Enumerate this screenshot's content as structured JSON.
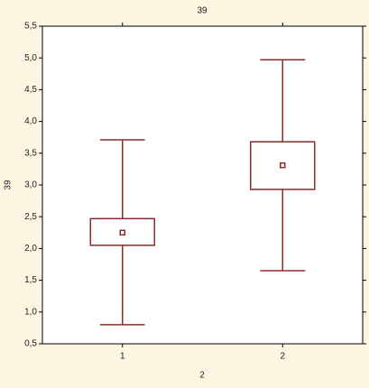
{
  "chart_data": {
    "type": "box",
    "title": "39",
    "x_label": "2",
    "y_label": "39",
    "categories": [
      "1",
      "2"
    ],
    "boxes": [
      {
        "whisker_low": 0.8,
        "q1": 2.05,
        "mean": 2.25,
        "q3": 2.47,
        "whisker_high": 3.71
      },
      {
        "whisker_low": 1.65,
        "q1": 2.93,
        "mean": 3.31,
        "q3": 3.68,
        "whisker_high": 4.97
      }
    ],
    "color": "#8c2b2b",
    "ylim": [
      0.5,
      5.5
    ],
    "yticks": [
      {
        "value": 0.5,
        "label": "0,5"
      },
      {
        "value": 1.0,
        "label": "1,0"
      },
      {
        "value": 1.5,
        "label": "1,5"
      },
      {
        "value": 2.0,
        "label": "2,0"
      },
      {
        "value": 2.5,
        "label": "2,5"
      },
      {
        "value": 3.0,
        "label": "3,0"
      },
      {
        "value": 3.5,
        "label": "3,5"
      },
      {
        "value": 4.0,
        "label": "4,0"
      },
      {
        "value": 4.5,
        "label": "4,5"
      },
      {
        "value": 5.0,
        "label": "5,0"
      },
      {
        "value": 5.5,
        "label": "5,5"
      }
    ],
    "grid": false
  }
}
